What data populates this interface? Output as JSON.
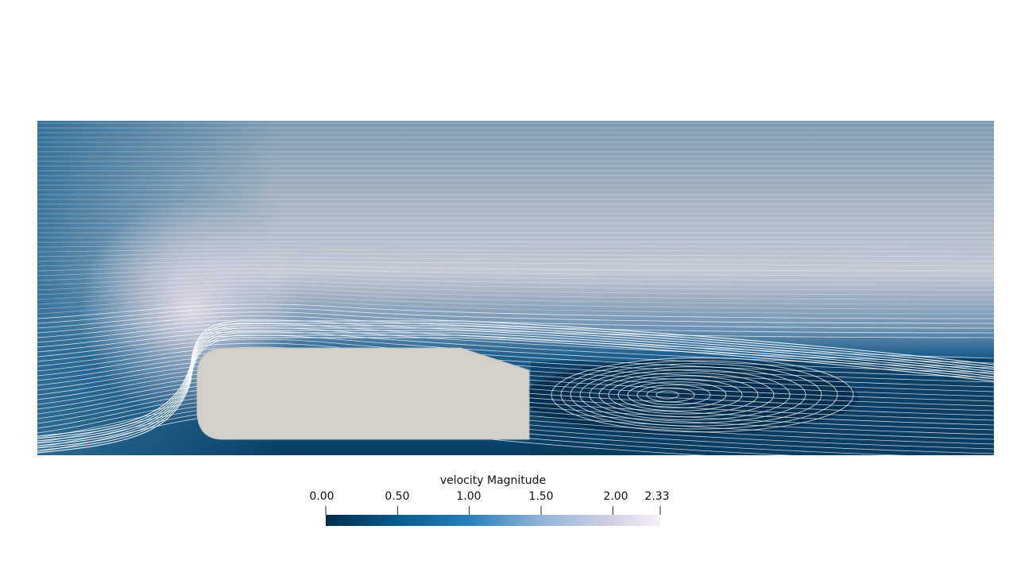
{
  "colorbar": {
    "title": "velocity Magnitude",
    "range": [
      0.0,
      2.33
    ],
    "ticks": [
      {
        "value": 0.0,
        "label": "0.00"
      },
      {
        "value": 0.5,
        "label": "0.50"
      },
      {
        "value": 1.0,
        "label": "1.00"
      },
      {
        "value": 1.5,
        "label": "1.50"
      },
      {
        "value": 2.0,
        "label": "2.00"
      },
      {
        "value": 2.33,
        "label": "2.33"
      }
    ],
    "colormap": [
      "#012d4c",
      "#0a5c8e",
      "#2a7fbc",
      "#8fb4d8",
      "#d4d1e6",
      "#f7f0f6"
    ]
  },
  "scene": {
    "body_color": "#d1d0cb",
    "streamline_color": "#ffffff"
  }
}
